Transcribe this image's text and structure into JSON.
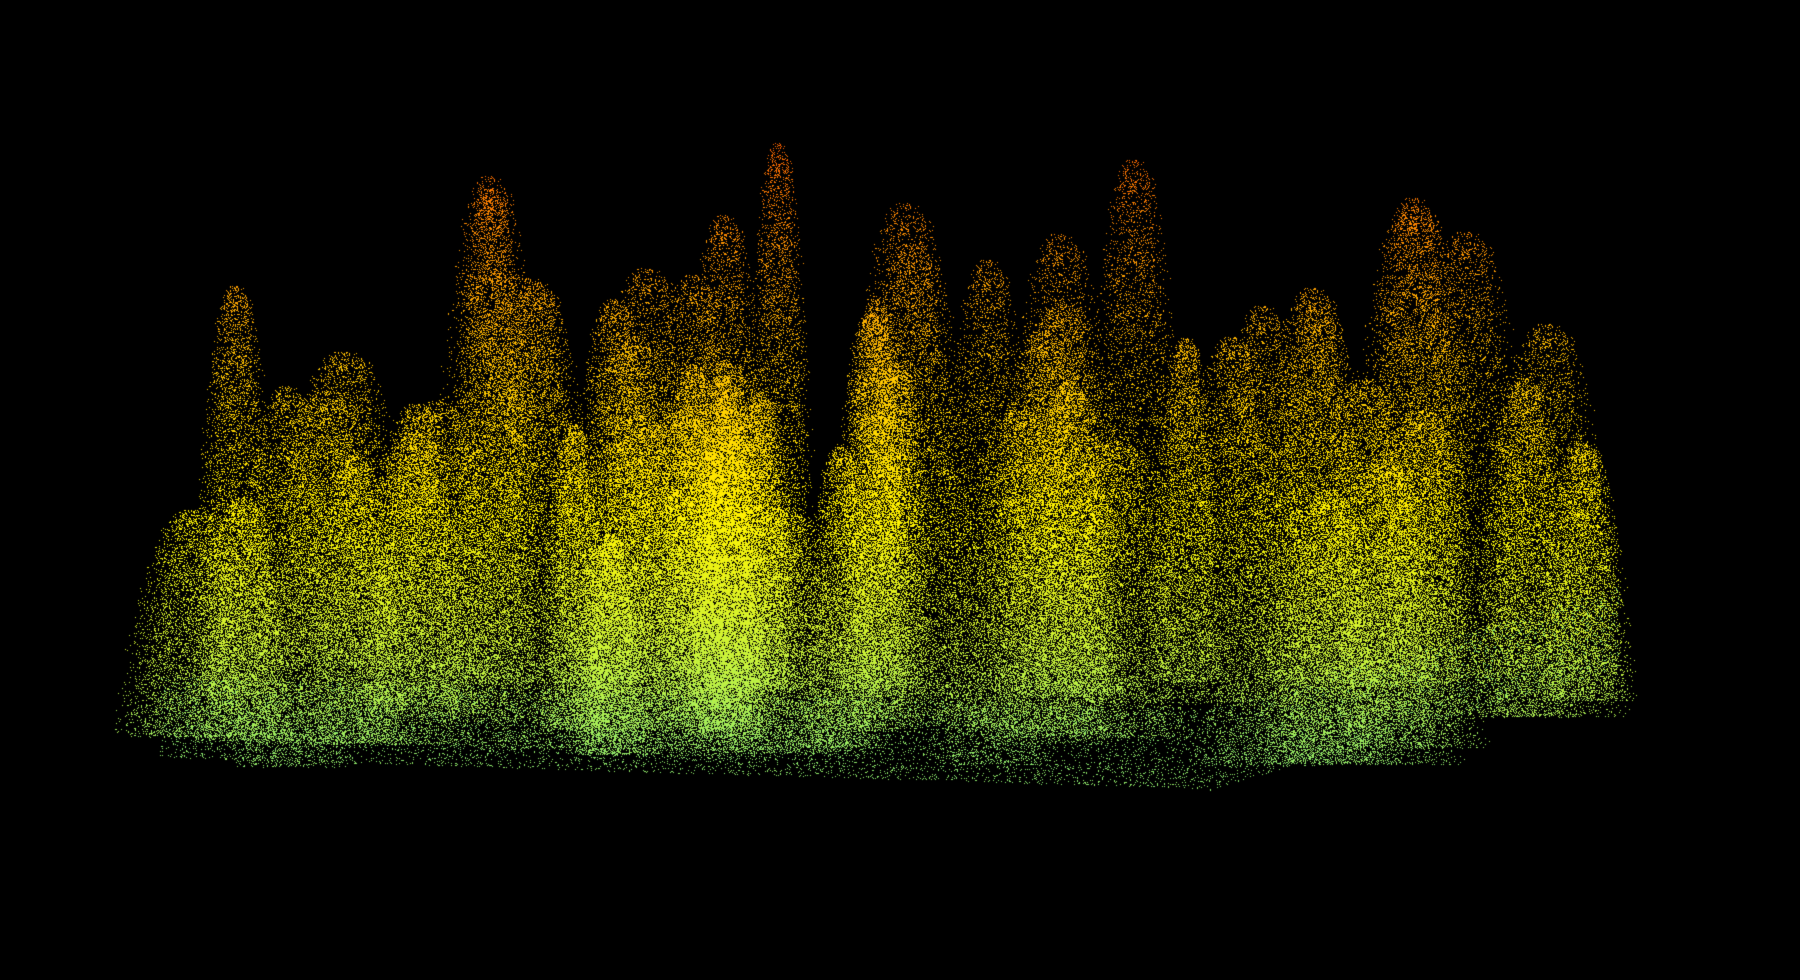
{
  "scene": {
    "background_color": "#000000",
    "view": "lidar-point-cloud-3d",
    "subject": "forest-canopy",
    "colormap": {
      "name": "height-ramp",
      "stops": [
        "#7fe87a",
        "#c8f23a",
        "#fff200",
        "#ffc400",
        "#ff8a00",
        "#ff4a00"
      ]
    },
    "tree_count_approx": 60
  }
}
